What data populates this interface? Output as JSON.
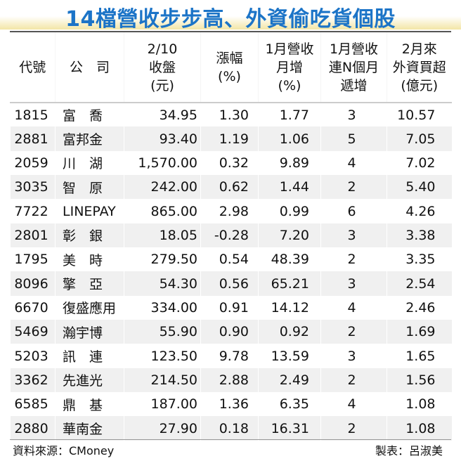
{
  "title": "14檔營收步步高、外資偷吃貨個股",
  "columns": [
    [
      "代號"
    ],
    [
      "公　司"
    ],
    [
      "2/10",
      "收盤",
      "(元)"
    ],
    [
      "漲幅",
      "(%)"
    ],
    [
      "1月營收",
      "月增",
      "(%)"
    ],
    [
      "1月營收",
      "連N個月",
      "遞增"
    ],
    [
      "2月來",
      "外資買超",
      "(億元)"
    ]
  ],
  "rows": [
    [
      "1815",
      "富　喬",
      "34.95",
      "1.30",
      "1.77",
      "3",
      "10.57"
    ],
    [
      "2881",
      "富邦金",
      "93.40",
      "1.19",
      "1.06",
      "5",
      "7.05"
    ],
    [
      "2059",
      "川　湖",
      "1,570.00",
      "0.32",
      "9.89",
      "4",
      "7.02"
    ],
    [
      "3035",
      "智　原",
      "242.00",
      "0.62",
      "1.44",
      "2",
      "5.40"
    ],
    [
      "7722",
      "LINEPAY",
      "865.00",
      "2.98",
      "0.99",
      "6",
      "4.26"
    ],
    [
      "2801",
      "彰　銀",
      "18.05",
      "-0.28",
      "7.20",
      "3",
      "3.38"
    ],
    [
      "1795",
      "美　時",
      "279.50",
      "0.54",
      "48.39",
      "2",
      "3.35"
    ],
    [
      "8096",
      "擎　亞",
      "54.30",
      "0.56",
      "65.21",
      "3",
      "2.54"
    ],
    [
      "6670",
      "復盛應用",
      "334.00",
      "0.91",
      "14.12",
      "4",
      "2.46"
    ],
    [
      "5469",
      "瀚宇博",
      "55.90",
      "0.90",
      "0.92",
      "2",
      "1.69"
    ],
    [
      "5203",
      "訊　連",
      "123.50",
      "9.78",
      "13.59",
      "3",
      "1.65"
    ],
    [
      "3362",
      "先進光",
      "214.50",
      "2.88",
      "2.49",
      "2",
      "1.56"
    ],
    [
      "6585",
      "鼎　基",
      "187.00",
      "1.36",
      "6.35",
      "4",
      "1.08"
    ],
    [
      "2880",
      "華南金",
      "27.90",
      "0.18",
      "16.31",
      "2",
      "1.08"
    ]
  ],
  "footer": {
    "source": "資料來源：CMoney",
    "maker": "製表：呂淑美"
  },
  "colors": {
    "title": "#1c74c7",
    "band": "#f3e6a6",
    "stripe": "#f0f0f0"
  }
}
